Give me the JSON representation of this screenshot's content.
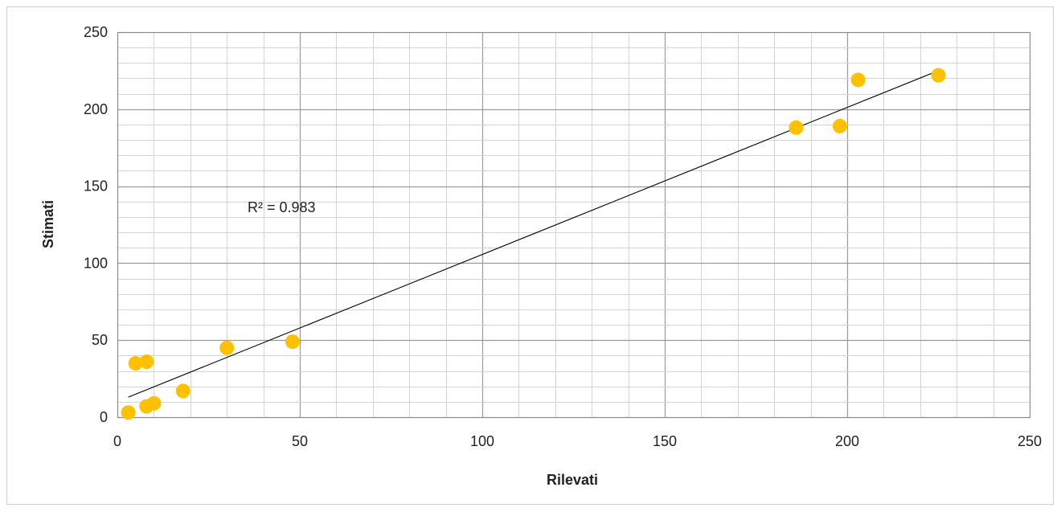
{
  "chart_data": {
    "type": "scatter",
    "xlabel": "Rilevati",
    "ylabel": "Stimati",
    "xlim": [
      0,
      250
    ],
    "ylim": [
      0,
      250
    ],
    "x_ticks": [
      0,
      50,
      100,
      150,
      200,
      250
    ],
    "y_ticks": [
      0,
      50,
      100,
      150,
      200,
      250
    ],
    "x_tick_labels": [
      "0",
      "50",
      "100",
      "150",
      "200",
      "250"
    ],
    "y_tick_labels": [
      "0",
      "50",
      "100",
      "150",
      "200",
      "250"
    ],
    "grid": true,
    "legend": "none",
    "point_color": "#FFC000",
    "trendline_color": "#000000",
    "points": [
      {
        "x": 3,
        "y": 3
      },
      {
        "x": 5,
        "y": 35
      },
      {
        "x": 8,
        "y": 36
      },
      {
        "x": 8,
        "y": 7
      },
      {
        "x": 10,
        "y": 9
      },
      {
        "x": 18,
        "y": 17
      },
      {
        "x": 30,
        "y": 45
      },
      {
        "x": 48,
        "y": 49
      },
      {
        "x": 186,
        "y": 188
      },
      {
        "x": 198,
        "y": 189
      },
      {
        "x": 203,
        "y": 219
      },
      {
        "x": 225,
        "y": 222
      }
    ],
    "trendline": {
      "type": "linear",
      "x_start": 3,
      "y_start": 13,
      "x_end": 225,
      "y_end": 225
    },
    "annotation": "R² = 0.983"
  }
}
